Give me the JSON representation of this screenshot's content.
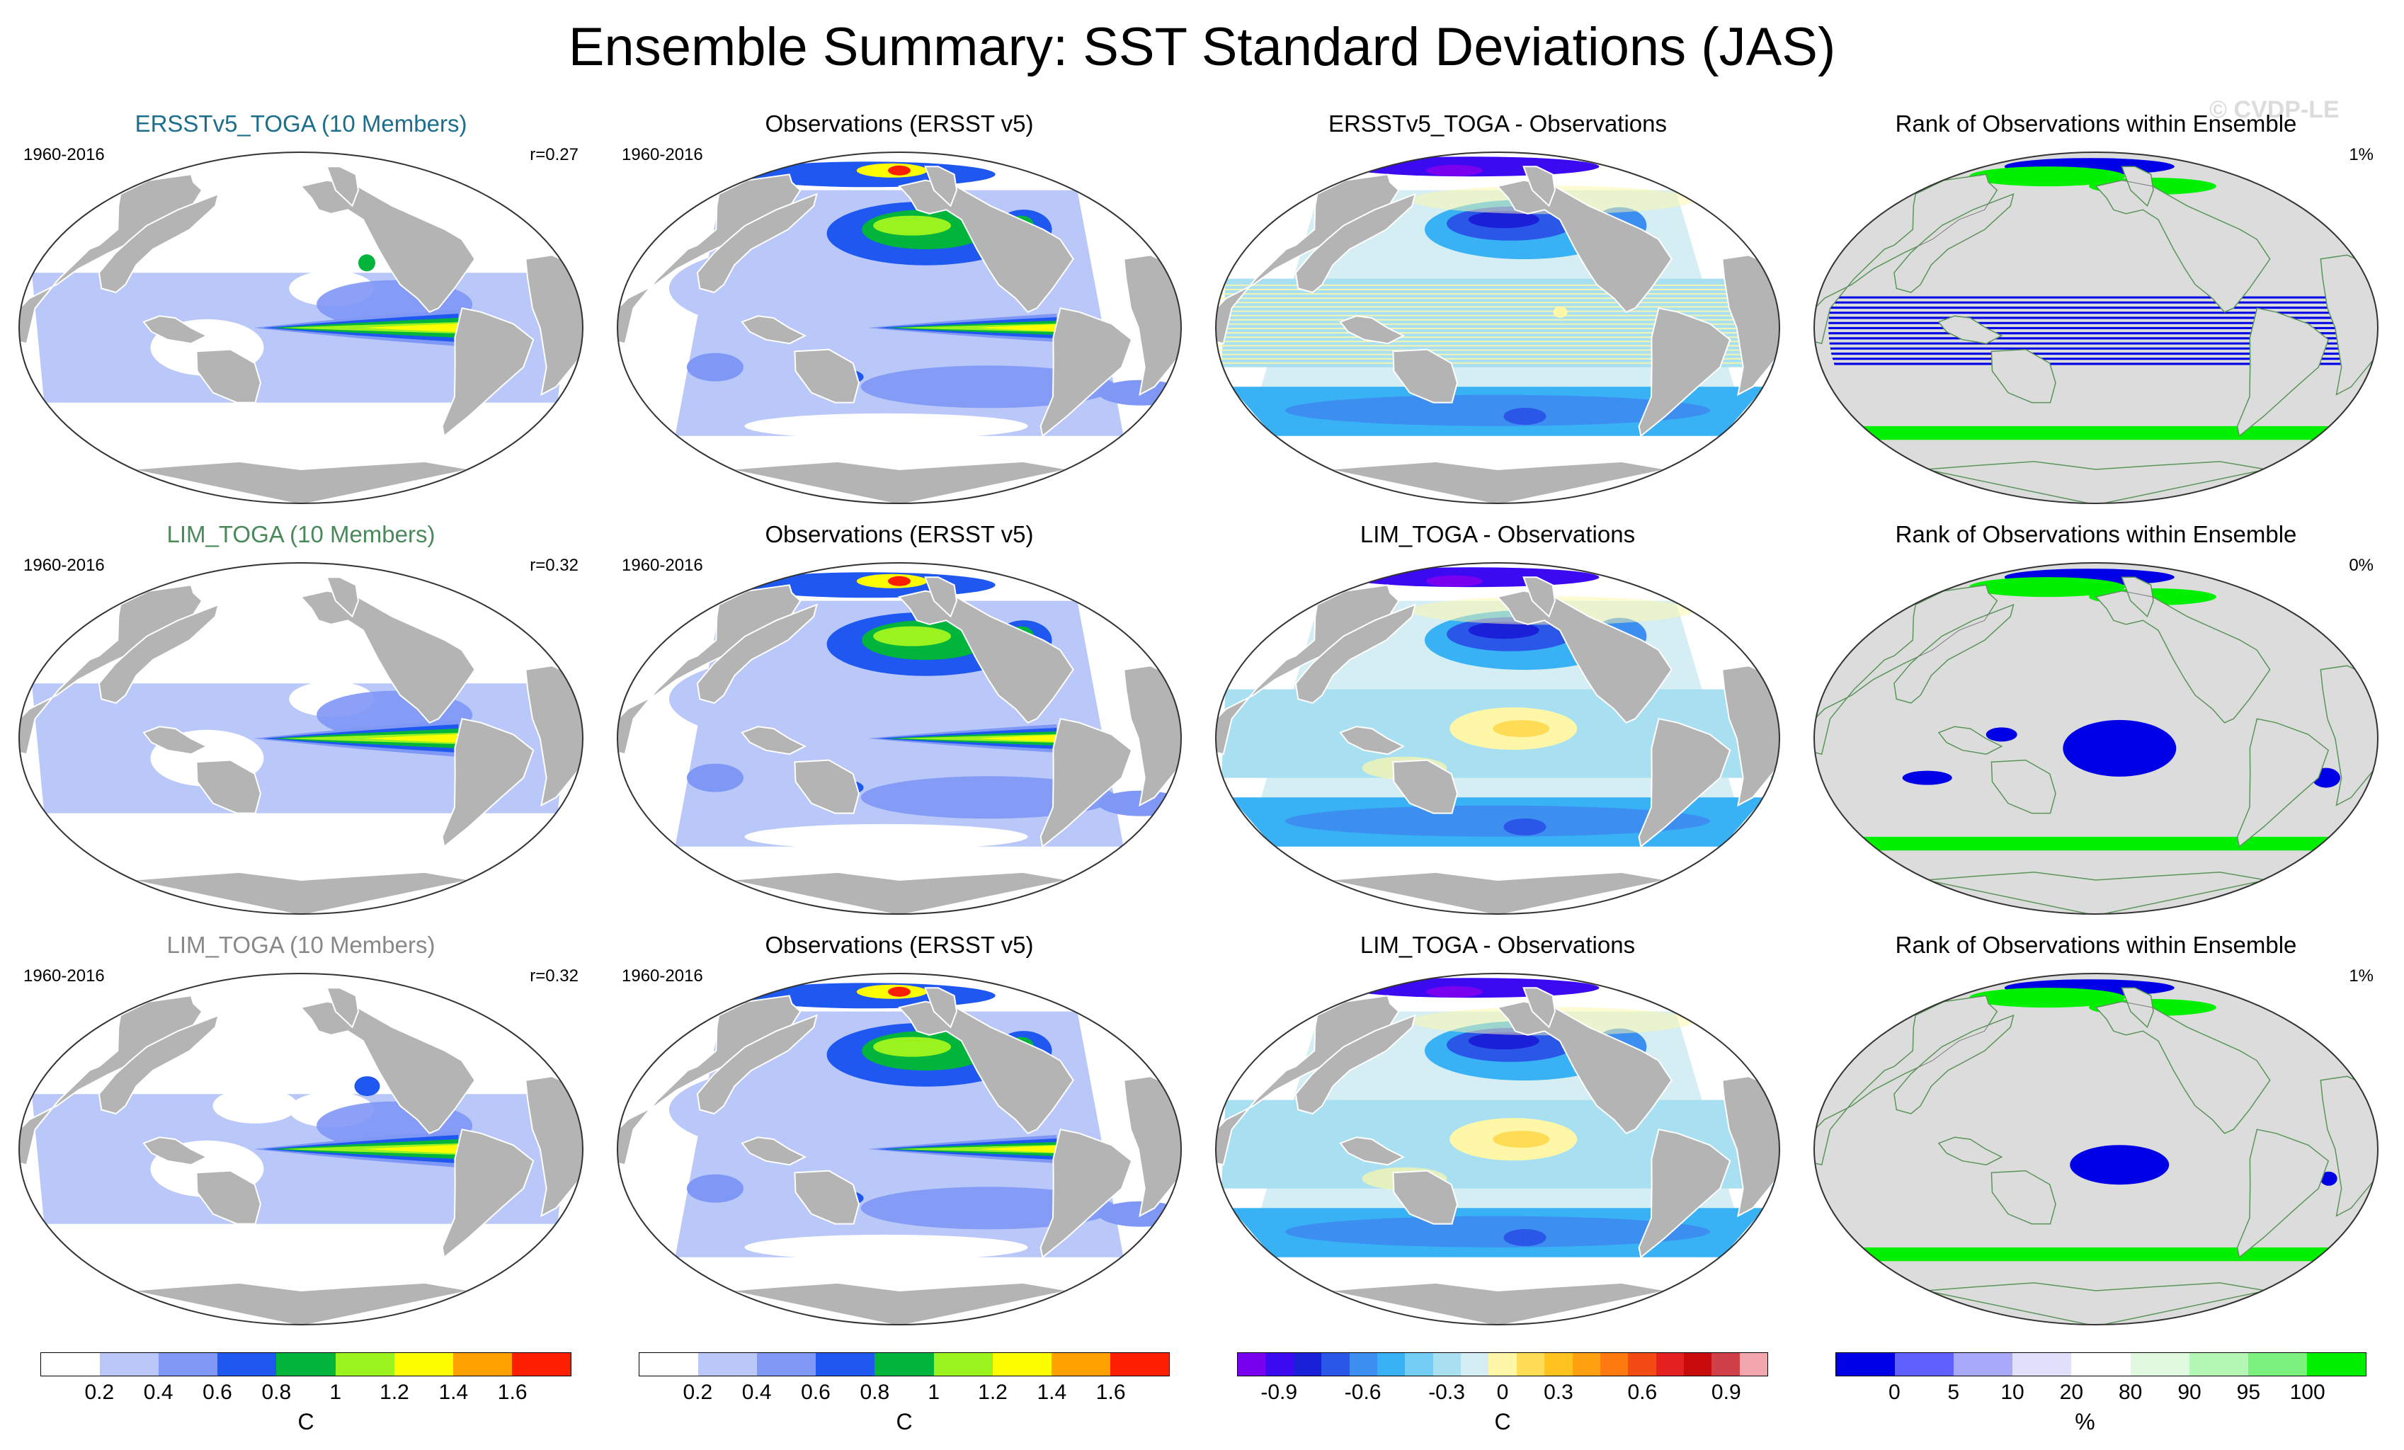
{
  "title": "Ensemble Summary: SST Standard Deviations (JAS)",
  "watermark": "© CVDP-LE",
  "colors": {
    "land": "#b4b4b4",
    "ocean_white": "#ffffff",
    "rank_land": "#dcdcdc",
    "sd_levels": [
      "#ffffff",
      "#b9c8f8",
      "#7f97f5",
      "#1f58f0",
      "#00b43c",
      "#9af21f",
      "#fefe00",
      "#fea000",
      "#fe1e00"
    ],
    "diff_levels": [
      "#7a00f0",
      "#3b0af0",
      "#1a20d8",
      "#2a57e8",
      "#3c8ef0",
      "#38b2f5",
      "#74cdf5",
      "#a8e0f2",
      "#d4eef4",
      "#fef7a8",
      "#fedc55",
      "#fec31f",
      "#fea00f",
      "#fe7a10",
      "#f24b16",
      "#e42020",
      "#c80a0a",
      "#d04048",
      "#f4a6ae"
    ],
    "rank_levels": [
      "#0000e6",
      "#6060ff",
      "#a9a9fa",
      "#e0e0fa",
      "#ffffff",
      "#e0fae0",
      "#b4f6b4",
      "#7cf07c",
      "#00f000"
    ]
  },
  "panels": [
    {
      "title": "ERSSTv5_TOGA (10 Members)",
      "title_color": "#1c6f8c",
      "years": "1960-2016",
      "stat": "r=0.27",
      "kind": "model",
      "variant": 0
    },
    {
      "title": "Observations (ERSST v5)",
      "title_color": "#000000",
      "years": "1960-2016",
      "stat": "",
      "kind": "obs",
      "variant": 0
    },
    {
      "title": "ERSSTv5_TOGA - Observations",
      "title_color": "#000000",
      "years": "",
      "stat": "",
      "kind": "diff",
      "variant": 0
    },
    {
      "title": "Rank of Observations within Ensemble",
      "title_color": "#000000",
      "years": "",
      "stat": "1%",
      "kind": "rank",
      "variant": 0
    },
    {
      "title": "LIM_TOGA (10 Members)",
      "title_color": "#4a8a5a",
      "years": "1960-2016",
      "stat": "r=0.32",
      "kind": "model",
      "variant": 1
    },
    {
      "title": "Observations (ERSST v5)",
      "title_color": "#000000",
      "years": "1960-2016",
      "stat": "",
      "kind": "obs",
      "variant": 1
    },
    {
      "title": "LIM_TOGA - Observations",
      "title_color": "#000000",
      "years": "",
      "stat": "",
      "kind": "diff",
      "variant": 1
    },
    {
      "title": "Rank of Observations within Ensemble",
      "title_color": "#000000",
      "years": "",
      "stat": "0%",
      "kind": "rank",
      "variant": 1
    },
    {
      "title": "LIM_TOGA (10 Members)",
      "title_color": "#888888",
      "years": "1960-2016",
      "stat": "r=0.32",
      "kind": "model",
      "variant": 2
    },
    {
      "title": "Observations (ERSST v5)",
      "title_color": "#000000",
      "years": "1960-2016",
      "stat": "",
      "kind": "obs",
      "variant": 2
    },
    {
      "title": "LIM_TOGA - Observations",
      "title_color": "#000000",
      "years": "",
      "stat": "",
      "kind": "diff",
      "variant": 2
    },
    {
      "title": "Rank of Observations within Ensemble",
      "title_color": "#000000",
      "years": "",
      "stat": "1%",
      "kind": "rank",
      "variant": 2
    }
  ],
  "colorbars": [
    {
      "kind": "sd",
      "unit": "C",
      "labels": [
        "0.2",
        "0.4",
        "0.6",
        "0.8",
        "1",
        "1.2",
        "1.4",
        "1.6"
      ]
    },
    {
      "kind": "sd",
      "unit": "C",
      "labels": [
        "0.2",
        "0.4",
        "0.6",
        "0.8",
        "1",
        "1.2",
        "1.4",
        "1.6"
      ]
    },
    {
      "kind": "diff",
      "unit": "C",
      "labels": [
        "-0.9",
        "-0.6",
        "-0.3",
        "0",
        "0.3",
        "0.6",
        "0.9"
      ]
    },
    {
      "kind": "rank",
      "unit": "%",
      "labels": [
        "0",
        "5",
        "10",
        "20",
        "80",
        "90",
        "95",
        "100"
      ]
    }
  ]
}
